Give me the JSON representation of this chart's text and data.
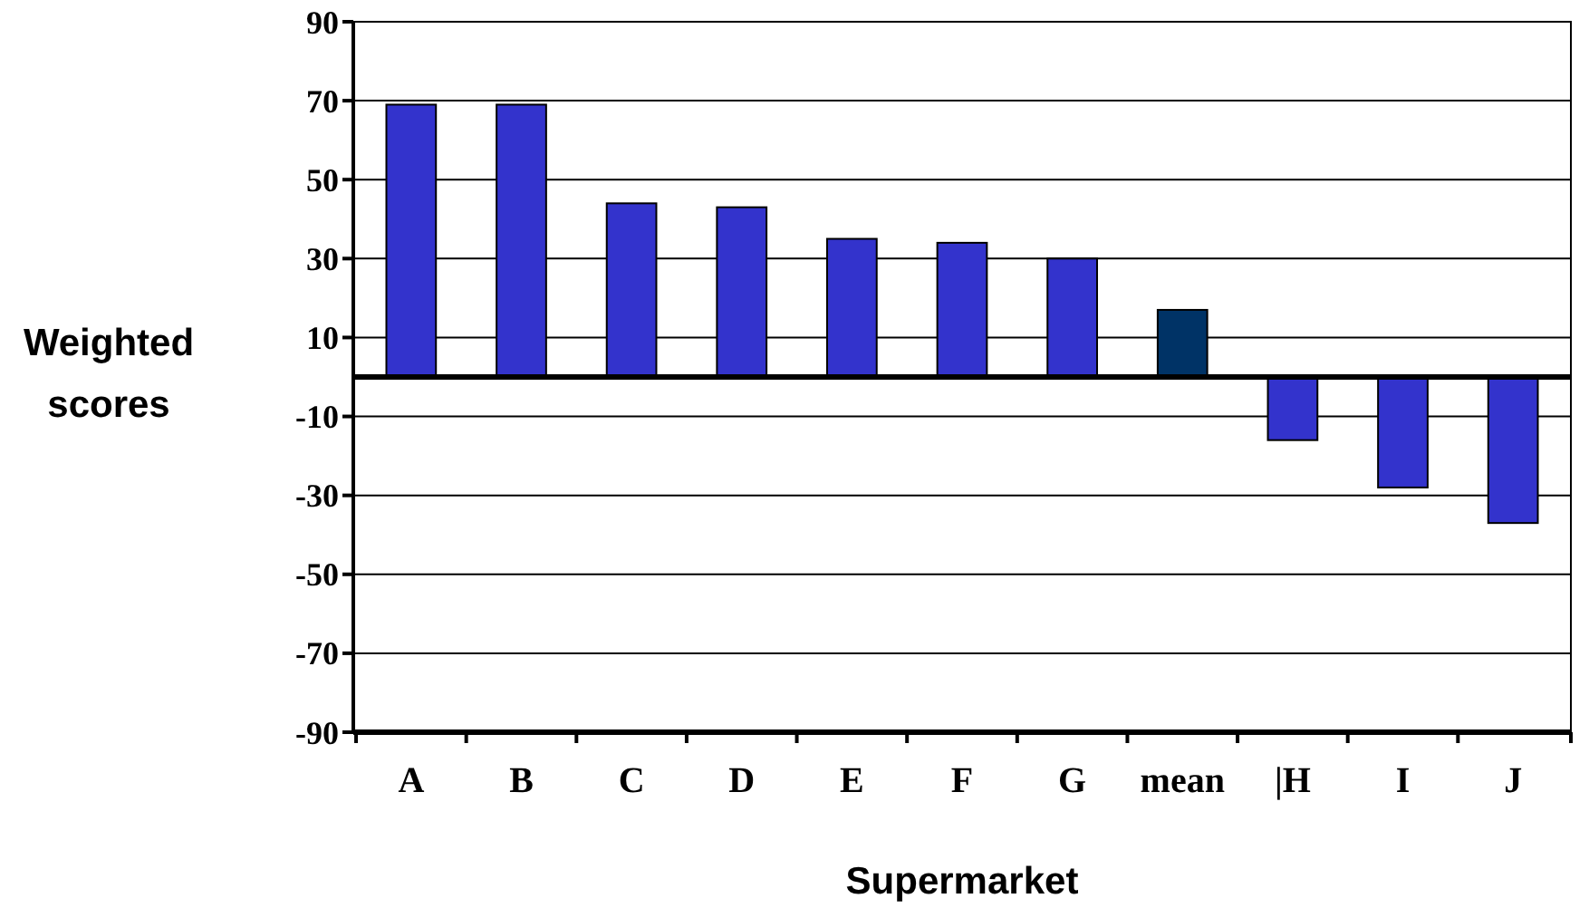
{
  "chart_data": {
    "type": "bar",
    "xlabel": "Supermarket",
    "ylabel": "Weighted scores",
    "categories": [
      "A",
      "B",
      "C",
      "D",
      "E",
      "F",
      "G",
      "mean",
      "|H",
      "I",
      "J"
    ],
    "values": [
      69,
      69,
      44,
      43,
      35,
      34,
      30,
      17,
      -16,
      -28,
      -37
    ],
    "colors": [
      "#3333cc",
      "#3333cc",
      "#3333cc",
      "#3333cc",
      "#3333cc",
      "#3333cc",
      "#3333cc",
      "#003366",
      "#3333cc",
      "#3333cc",
      "#3333cc"
    ],
    "ylim": [
      -90,
      90
    ],
    "yticks": [
      -90,
      -70,
      -50,
      -30,
      -10,
      10,
      30,
      50,
      70,
      90
    ],
    "grid": "y"
  }
}
